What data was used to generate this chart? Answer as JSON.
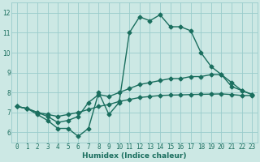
{
  "background_color": "#cce8e4",
  "grid_color": "#99cccc",
  "line_color": "#1a6e5e",
  "xlabel": "Humidex (Indice chaleur)",
  "xlim": [
    -0.5,
    23.5
  ],
  "ylim": [
    5.5,
    12.5
  ],
  "yticks": [
    6,
    7,
    8,
    9,
    10,
    11,
    12
  ],
  "xticks": [
    0,
    1,
    2,
    3,
    4,
    5,
    6,
    7,
    8,
    9,
    10,
    11,
    12,
    13,
    14,
    15,
    16,
    17,
    18,
    19,
    20,
    21,
    22,
    23
  ],
  "xtick_labels": [
    "0",
    "1",
    "2",
    "3",
    "4",
    "5",
    "6",
    "7",
    "8",
    "9",
    "10",
    "11",
    "12",
    "13",
    "14",
    "15",
    "16",
    "17",
    "18",
    "19",
    "20",
    "21",
    "22",
    "23"
  ],
  "curve1_x": [
    0,
    1,
    2,
    3,
    4,
    5,
    6,
    7,
    8,
    9,
    10,
    11,
    12,
    13,
    14,
    15,
    16,
    17,
    18,
    19,
    20,
    21,
    22,
    23
  ],
  "curve1_y": [
    7.3,
    7.2,
    6.9,
    6.6,
    6.2,
    6.2,
    5.8,
    6.2,
    8.0,
    6.9,
    7.5,
    11.0,
    11.8,
    11.6,
    11.9,
    11.3,
    11.3,
    11.1,
    10.0,
    9.3,
    8.9,
    8.5,
    8.1,
    7.9
  ],
  "curve2_x": [
    0,
    1,
    2,
    3,
    4,
    5,
    6,
    7,
    8,
    9,
    10,
    11,
    12,
    13,
    14,
    15,
    16,
    17,
    18,
    19,
    20,
    21,
    22,
    23
  ],
  "curve2_y": [
    7.3,
    7.2,
    7.0,
    6.8,
    6.5,
    6.6,
    6.8,
    7.5,
    7.9,
    7.8,
    8.0,
    8.2,
    8.4,
    8.5,
    8.6,
    8.7,
    8.7,
    8.8,
    8.8,
    8.9,
    8.9,
    8.3,
    8.1,
    7.9
  ],
  "curve3_x": [
    0,
    1,
    2,
    3,
    4,
    5,
    6,
    7,
    8,
    9,
    10,
    11,
    12,
    13,
    14,
    15,
    16,
    17,
    18,
    19,
    20,
    21,
    22,
    23
  ],
  "curve3_y": [
    7.3,
    7.2,
    7.0,
    6.9,
    6.8,
    6.9,
    7.0,
    7.15,
    7.3,
    7.4,
    7.55,
    7.65,
    7.75,
    7.8,
    7.85,
    7.87,
    7.88,
    7.9,
    7.91,
    7.92,
    7.93,
    7.9,
    7.85,
    7.85
  ],
  "marker": "D",
  "markersize": 2.5,
  "linewidth": 1.0,
  "tick_fontsize": 5.5,
  "xlabel_fontsize": 6.5
}
